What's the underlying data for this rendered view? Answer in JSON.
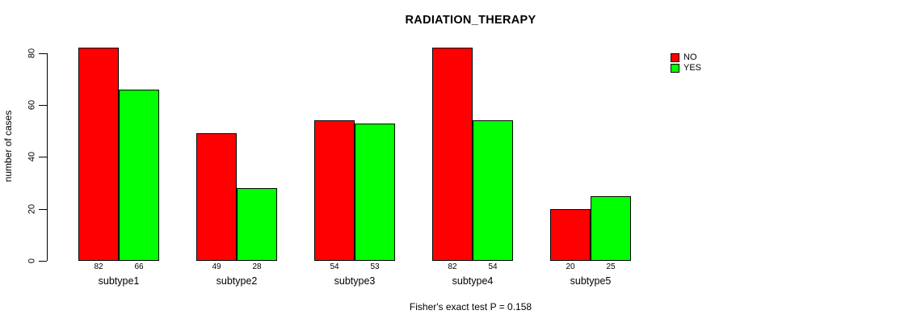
{
  "chart_data": {
    "type": "bar",
    "title": "RADIATION_THERAPY",
    "ylabel": "number of cases",
    "xlabel": "",
    "caption": "Fisher's exact test P = 0.158",
    "categories": [
      "subtype1",
      "subtype2",
      "subtype3",
      "subtype4",
      "subtype5"
    ],
    "series": [
      {
        "name": "NO",
        "color": "#FF0000",
        "values": [
          82,
          49,
          54,
          82,
          20
        ]
      },
      {
        "name": "YES",
        "color": "#00FF00",
        "values": [
          66,
          28,
          53,
          54,
          25
        ]
      }
    ],
    "bar_value_labels": {
      "NO": [
        82,
        49,
        54,
        82,
        20
      ],
      "YES": [
        66,
        28,
        53,
        54,
        25
      ]
    },
    "yticks": [
      0,
      20,
      40,
      60,
      80
    ],
    "ylim": [
      0,
      86
    ],
    "grid": false,
    "legend_position": "top-right",
    "background_color": "#FFFFFF",
    "axis_color": "#000000",
    "text_color": "#000000"
  }
}
